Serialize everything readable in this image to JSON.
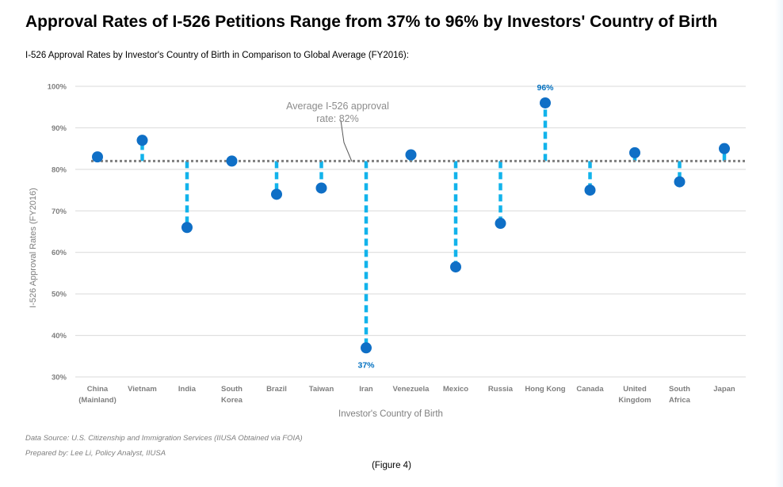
{
  "title": "Approval Rates of I-526 Petitions Range from 37% to 96% by Investors' Country of Birth",
  "subtitle": "I-526 Approval Rates by Investor's Country of Birth in Comparison to Global Average (FY2016):",
  "footer": {
    "source": "Data Source: U.S. Citizenship and Immigration Services (IIUSA Obtained via FOIA)",
    "prepared": "Prepared by: Lee Li, Policy Analyst, IIUSA",
    "figure": "(Figure 4)"
  },
  "chart_data": {
    "type": "scatter",
    "categories": [
      [
        "China",
        "(Mainland)"
      ],
      [
        "Vietnam"
      ],
      [
        "India"
      ],
      [
        "South",
        "Korea"
      ],
      [
        "Brazil"
      ],
      [
        "Taiwan"
      ],
      [
        "Iran"
      ],
      [
        "Venezuela"
      ],
      [
        "Mexico"
      ],
      [
        "Russia"
      ],
      [
        "Hong Kong"
      ],
      [
        "Canada"
      ],
      [
        "United",
        "Kingdom"
      ],
      [
        "South",
        "Africa"
      ],
      [
        "Japan"
      ]
    ],
    "values": [
      83,
      87,
      66,
      82,
      74,
      75.5,
      37,
      83.5,
      56.5,
      67,
      96,
      75,
      84,
      77,
      85
    ],
    "average": 82,
    "average_label": [
      "Average I-526 approval",
      "rate: 82%"
    ],
    "data_labels": [
      {
        "index": 10,
        "text": "96%"
      },
      {
        "index": 6,
        "text": "37%"
      }
    ],
    "xlabel": "Investor's Country of Birth",
    "ylabel": "I-526 Approval Rates (FY2016)",
    "ylim": [
      30,
      100
    ],
    "yticks": [
      30,
      40,
      50,
      60,
      70,
      80,
      90,
      100
    ],
    "ytick_labels": [
      "30%",
      "40%",
      "50%",
      "60%",
      "70%",
      "80%",
      "90%",
      "100%"
    ],
    "grid": true,
    "colors": {
      "point": "#0f6fc6",
      "stem": "#12b3eb",
      "average": "#7f7f7f",
      "grid": "#d9d9d9",
      "tick": "#7f7f7f",
      "label_blue": "#0070c0"
    }
  }
}
